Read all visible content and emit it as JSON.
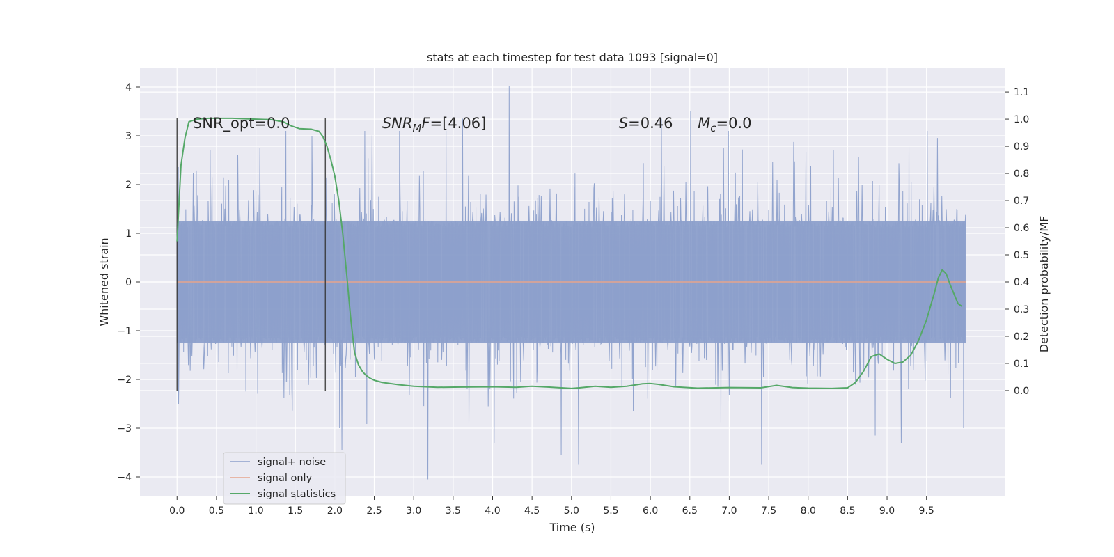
{
  "chart_data": {
    "type": "line",
    "title": "stats at each timestep for test data 1093 [signal=0]",
    "xlabel": "Time (s)",
    "ylabel": "Whitened strain",
    "y2label": "Detection probability/MF",
    "xlim": [
      -0.47,
      10.5
    ],
    "ylim": [
      -4.4,
      4.4
    ],
    "y2lim": [
      -0.39,
      1.19
    ],
    "x_ticks": [
      "0.0",
      "0.5",
      "1.0",
      "1.5",
      "2.0",
      "2.5",
      "3.0",
      "3.5",
      "4.0",
      "4.5",
      "5.0",
      "5.5",
      "6.0",
      "6.5",
      "7.0",
      "7.5",
      "8.0",
      "8.5",
      "9.0",
      "9.5"
    ],
    "y_ticks": [
      "−4",
      "−3",
      "−2",
      "−1",
      "0",
      "1",
      "2",
      "3",
      "4"
    ],
    "y2_ticks": [
      "0.0",
      "0.1",
      "0.2",
      "0.3",
      "0.4",
      "0.5",
      "0.6",
      "0.7",
      "0.8",
      "0.9",
      "1.0",
      "1.1"
    ],
    "grid": true,
    "legend_placement": "lower-left",
    "series": [
      {
        "name": "signal+ noise",
        "color": "#8da0cb",
        "kind": "noise",
        "x_range": [
          0.0,
          10.0
        ],
        "band": [
          -1.25,
          1.25
        ],
        "max_abs": 4.0,
        "peaks": [
          {
            "x": 0.02,
            "y": -2.5
          },
          {
            "x": 0.42,
            "y": 2.7
          },
          {
            "x": 0.77,
            "y": 2.6
          },
          {
            "x": 1.05,
            "y": 2.75
          },
          {
            "x": 1.38,
            "y": 3.1
          },
          {
            "x": 1.71,
            "y": 3.0
          },
          {
            "x": 2.06,
            "y": -3.0
          },
          {
            "x": 2.09,
            "y": -3.45
          },
          {
            "x": 2.38,
            "y": 3.1
          },
          {
            "x": 2.82,
            "y": 3.1
          },
          {
            "x": 3.18,
            "y": -4.05
          },
          {
            "x": 3.41,
            "y": 3.1
          },
          {
            "x": 3.62,
            "y": 3.35
          },
          {
            "x": 4.02,
            "y": -3.3
          },
          {
            "x": 4.21,
            "y": 4.02
          },
          {
            "x": 4.87,
            "y": -3.55
          },
          {
            "x": 5.09,
            "y": -3.75
          },
          {
            "x": 6.14,
            "y": 3.35
          },
          {
            "x": 6.51,
            "y": 3.5
          },
          {
            "x": 6.99,
            "y": 3.1
          },
          {
            "x": 7.41,
            "y": -3.75
          },
          {
            "x": 8.32,
            "y": 2.7
          },
          {
            "x": 8.85,
            "y": -3.15
          },
          {
            "x": 9.18,
            "y": -3.3
          },
          {
            "x": 9.51,
            "y": 3.1
          },
          {
            "x": 9.97,
            "y": -3.0
          }
        ]
      },
      {
        "name": "signal only",
        "color": "#e5a48c",
        "x": [
          0.0,
          10.0
        ],
        "y": [
          0.0,
          0.0
        ]
      },
      {
        "name": "signal statistics",
        "color": "#55a868",
        "axis": "right",
        "x": [
          0.0,
          0.05,
          0.1,
          0.15,
          0.25,
          0.4,
          0.7,
          1.0,
          1.2,
          1.35,
          1.45,
          1.55,
          1.7,
          1.8,
          1.85,
          1.9,
          1.95,
          2.0,
          2.05,
          2.1,
          2.15,
          2.2,
          2.25,
          2.3,
          2.35,
          2.4,
          2.45,
          2.5,
          2.6,
          2.8,
          3.0,
          3.3,
          3.6,
          4.0,
          4.3,
          4.5,
          4.7,
          5.0,
          5.1,
          5.3,
          5.5,
          5.7,
          5.9,
          6.0,
          6.1,
          6.3,
          6.6,
          7.0,
          7.4,
          7.6,
          7.8,
          8.0,
          8.3,
          8.5,
          8.6,
          8.7,
          8.8,
          8.9,
          9.0,
          9.1,
          9.2,
          9.3,
          9.4,
          9.5,
          9.6,
          9.65,
          9.7,
          9.75,
          9.8,
          9.85,
          9.9,
          9.95
        ],
        "y": [
          0.55,
          0.83,
          0.93,
          0.99,
          1.0,
          1.003,
          1.003,
          1.0,
          0.998,
          0.99,
          0.975,
          0.965,
          0.963,
          0.955,
          0.935,
          0.9,
          0.85,
          0.79,
          0.7,
          0.58,
          0.43,
          0.27,
          0.14,
          0.095,
          0.07,
          0.055,
          0.045,
          0.038,
          0.03,
          0.022,
          0.016,
          0.012,
          0.013,
          0.014,
          0.012,
          0.016,
          0.013,
          0.008,
          0.01,
          0.016,
          0.012,
          0.016,
          0.025,
          0.026,
          0.023,
          0.014,
          0.009,
          0.011,
          0.01,
          0.019,
          0.011,
          0.009,
          0.008,
          0.01,
          0.03,
          0.07,
          0.125,
          0.135,
          0.115,
          0.1,
          0.105,
          0.13,
          0.185,
          0.26,
          0.36,
          0.415,
          0.445,
          0.43,
          0.39,
          0.355,
          0.32,
          0.31
        ]
      }
    ],
    "vlines": [
      0.0,
      1.88
    ],
    "annotations": [
      {
        "label": "SNR_opt=0.0",
        "x": 0.2
      },
      {
        "label": "SNR",
        "sub": "M",
        "suffix": "F=[4.06]",
        "italic": true,
        "x": 2.6
      },
      {
        "label": "S",
        "suffix": "=0.46",
        "italic": true,
        "x": 5.6
      },
      {
        "label": "M",
        "sub": "c",
        "suffix": "=0.0",
        "italic": true,
        "x": 6.6
      }
    ]
  }
}
